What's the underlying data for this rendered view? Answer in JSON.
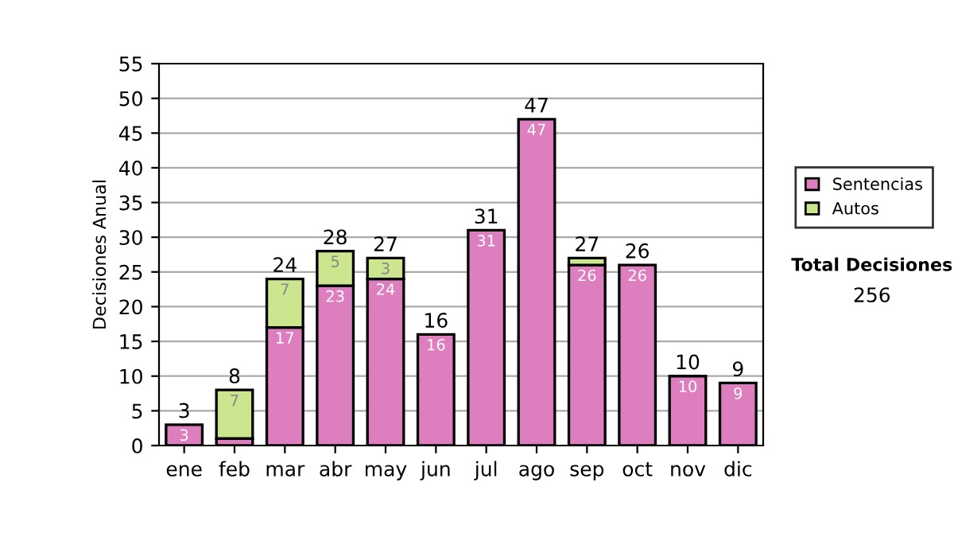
{
  "chart_data": {
    "type": "bar",
    "stacked": true,
    "ylabel": "Decisiones Anual",
    "categories": [
      "ene",
      "feb",
      "mar",
      "abr",
      "may",
      "jun",
      "jul",
      "ago",
      "sep",
      "oct",
      "nov",
      "dic"
    ],
    "series": [
      {
        "name": "Sentencias",
        "color": "#dd7fbf",
        "values": [
          3,
          1,
          17,
          23,
          24,
          16,
          31,
          47,
          26,
          26,
          10,
          9
        ],
        "value_labels": [
          "3",
          null,
          "17",
          "23",
          "24",
          "16",
          "31",
          "47",
          "26",
          "26",
          "10",
          "9"
        ]
      },
      {
        "name": "Autos",
        "color": "#cce58f",
        "values": [
          null,
          7,
          7,
          5,
          3,
          null,
          null,
          null,
          1,
          null,
          null,
          null
        ],
        "value_labels": [
          null,
          "7",
          "7",
          "5",
          "3",
          null,
          null,
          null,
          null,
          null,
          null,
          null
        ]
      }
    ],
    "totals": [
      "3",
      "8",
      "24",
      "28",
      "27",
      "16",
      "31",
      "47",
      "27",
      "26",
      "10",
      "9"
    ],
    "ylim": [
      0,
      55
    ],
    "yticks": [
      0,
      5,
      10,
      15,
      20,
      25,
      30,
      35,
      40,
      45,
      50,
      55
    ],
    "grid": "y",
    "legend": "right",
    "annotations": [
      "Total Decisiones",
      "256"
    ]
  }
}
